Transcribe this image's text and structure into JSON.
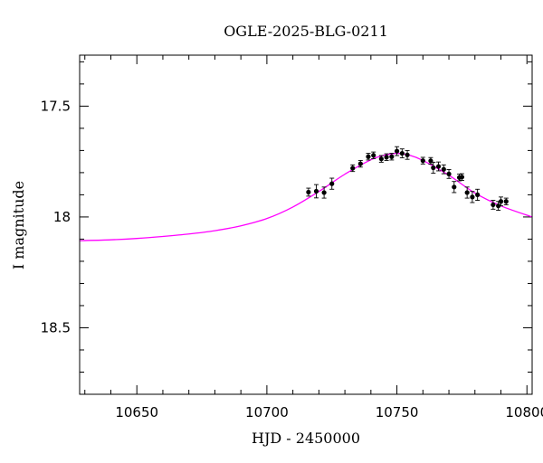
{
  "chart_data": {
    "type": "scatter",
    "title": "OGLE-2025-BLG-0211",
    "xlabel": "HJD - 2450000",
    "ylabel": "I magnitude",
    "xlim": [
      10628,
      10802
    ],
    "ylim": [
      18.8,
      17.27
    ],
    "y_inverted": true,
    "x_ticks": [
      10650,
      10700,
      10750,
      10800
    ],
    "x_tick_labels": [
      "10650",
      "10700",
      "10750",
      "10800"
    ],
    "y_ticks": [
      17.5,
      18,
      18.5
    ],
    "y_tick_labels": [
      "17.5",
      "18",
      "18.5"
    ],
    "x_minor_step": 10,
    "y_minor_step": 0.1,
    "grid": false,
    "legend": "none",
    "colors": {
      "model": "#ff00ff",
      "points": "#000000",
      "axes": "#000000"
    },
    "model": {
      "name": "",
      "points": [
        [
          10628,
          18.107
        ],
        [
          10640,
          18.103
        ],
        [
          10650,
          18.097
        ],
        [
          10660,
          18.088
        ],
        [
          10670,
          18.077
        ],
        [
          10680,
          18.062
        ],
        [
          10690,
          18.04
        ],
        [
          10700,
          18.007
        ],
        [
          10710,
          17.955
        ],
        [
          10720,
          17.885
        ],
        [
          10730,
          17.807
        ],
        [
          10740,
          17.742
        ],
        [
          10745,
          17.722
        ],
        [
          10750,
          17.713
        ],
        [
          10755,
          17.722
        ],
        [
          10760,
          17.745
        ],
        [
          10770,
          17.812
        ],
        [
          10780,
          17.892
        ],
        [
          10790,
          17.95
        ],
        [
          10802,
          18.0
        ]
      ]
    },
    "series": [
      {
        "name": "",
        "points": [
          {
            "x": 10716,
            "y": 17.888,
            "err": 0.018
          },
          {
            "x": 10719,
            "y": 17.884,
            "err": 0.03
          },
          {
            "x": 10722,
            "y": 17.89,
            "err": 0.025
          },
          {
            "x": 10725,
            "y": 17.85,
            "err": 0.025
          },
          {
            "x": 10733,
            "y": 17.78,
            "err": 0.015
          },
          {
            "x": 10736,
            "y": 17.76,
            "err": 0.015
          },
          {
            "x": 10739,
            "y": 17.728,
            "err": 0.015
          },
          {
            "x": 10741,
            "y": 17.722,
            "err": 0.015
          },
          {
            "x": 10744,
            "y": 17.738,
            "err": 0.015
          },
          {
            "x": 10746,
            "y": 17.73,
            "err": 0.015
          },
          {
            "x": 10748,
            "y": 17.728,
            "err": 0.015
          },
          {
            "x": 10750,
            "y": 17.703,
            "err": 0.02
          },
          {
            "x": 10752,
            "y": 17.713,
            "err": 0.02
          },
          {
            "x": 10754,
            "y": 17.72,
            "err": 0.02
          },
          {
            "x": 10760,
            "y": 17.746,
            "err": 0.015
          },
          {
            "x": 10763,
            "y": 17.747,
            "err": 0.015
          },
          {
            "x": 10764,
            "y": 17.778,
            "err": 0.025
          },
          {
            "x": 10766,
            "y": 17.772,
            "err": 0.02
          },
          {
            "x": 10768,
            "y": 17.785,
            "err": 0.02
          },
          {
            "x": 10770,
            "y": 17.806,
            "err": 0.02
          },
          {
            "x": 10772,
            "y": 17.865,
            "err": 0.025
          },
          {
            "x": 10774,
            "y": 17.822,
            "err": 0.015
          },
          {
            "x": 10775,
            "y": 17.82,
            "err": 0.015
          },
          {
            "x": 10777,
            "y": 17.89,
            "err": 0.025
          },
          {
            "x": 10779,
            "y": 17.91,
            "err": 0.025
          },
          {
            "x": 10781,
            "y": 17.9,
            "err": 0.025
          },
          {
            "x": 10787,
            "y": 17.945,
            "err": 0.02
          },
          {
            "x": 10789,
            "y": 17.95,
            "err": 0.02
          },
          {
            "x": 10790,
            "y": 17.93,
            "err": 0.02
          },
          {
            "x": 10792,
            "y": 17.93,
            "err": 0.015
          }
        ]
      }
    ]
  }
}
